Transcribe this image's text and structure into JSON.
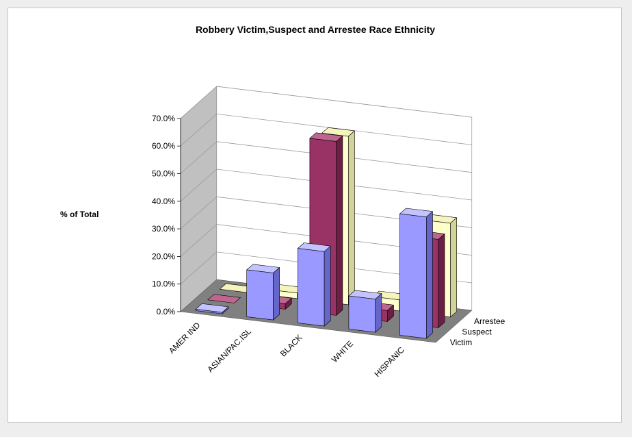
{
  "chart_data": {
    "type": "bar",
    "title": "Robbery Victim,Suspect and Arrestee Race Ethnicity",
    "xlabel": "",
    "ylabel": "% of Total",
    "ylim": [
      0,
      70
    ],
    "yticks": [
      "0.0%",
      "10.0%",
      "20.0%",
      "30.0%",
      "40.0%",
      "50.0%",
      "60.0%",
      "70.0%"
    ],
    "categories": [
      "AMER IND",
      "ASIAN/PAC.ISL",
      "BLACK",
      "WHITE",
      "HISPANIC"
    ],
    "series": [
      {
        "name": "Victim",
        "values": [
          0.5,
          17.0,
          27.0,
          12.0,
          44.0
        ]
      },
      {
        "name": "Suspect",
        "values": [
          0.0,
          2.0,
          63.0,
          4.0,
          32.0
        ]
      },
      {
        "name": "Arrestee",
        "values": [
          0.0,
          2.0,
          61.0,
          4.0,
          34.0
        ]
      }
    ],
    "colors": {
      "Victim": {
        "front": "#9999ff",
        "top": "#c3c3ff",
        "side": "#6666c8"
      },
      "Suspect": {
        "front": "#993366",
        "top": "#bf6690",
        "side": "#6c1f45"
      },
      "Arrestee": {
        "front": "#ffffcc",
        "top": "#f4f4bc",
        "side": "#d2d29c"
      }
    },
    "grid": true,
    "legend": "none (series named along depth axis)"
  }
}
